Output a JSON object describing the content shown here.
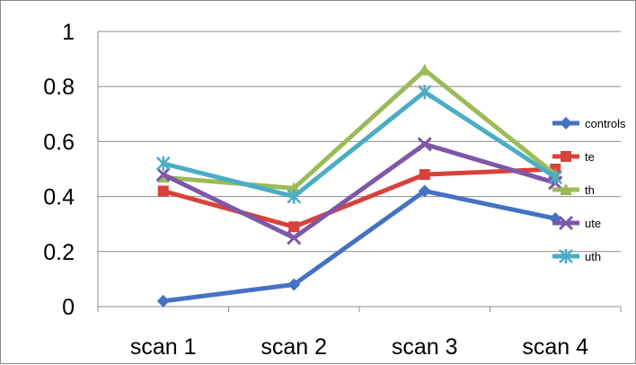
{
  "chart_data": {
    "type": "line",
    "categories": [
      "scan 1",
      "scan 2",
      "scan 3",
      "scan 4"
    ],
    "ylim": [
      0,
      1
    ],
    "yticks": [
      "0",
      "0.2",
      "0.4",
      "0.6",
      "0.8",
      "1"
    ],
    "grid": "horizontal",
    "legend_position": "right",
    "series": [
      {
        "name": "controls",
        "color": "#4472C4",
        "marker": "diamond",
        "values": [
          0.02,
          0.08,
          0.42,
          0.32
        ]
      },
      {
        "name": "te",
        "color": "#D9413B",
        "marker": "square",
        "values": [
          0.42,
          0.29,
          0.48,
          0.5
        ]
      },
      {
        "name": "th",
        "color": "#9BBB59",
        "marker": "triangle",
        "values": [
          0.47,
          0.43,
          0.86,
          0.48
        ]
      },
      {
        "name": "ute",
        "color": "#7E57A8",
        "marker": "x",
        "values": [
          0.48,
          0.25,
          0.59,
          0.45
        ]
      },
      {
        "name": "uth",
        "color": "#4BACC6",
        "marker": "star",
        "values": [
          0.52,
          0.4,
          0.78,
          0.47
        ]
      }
    ]
  }
}
